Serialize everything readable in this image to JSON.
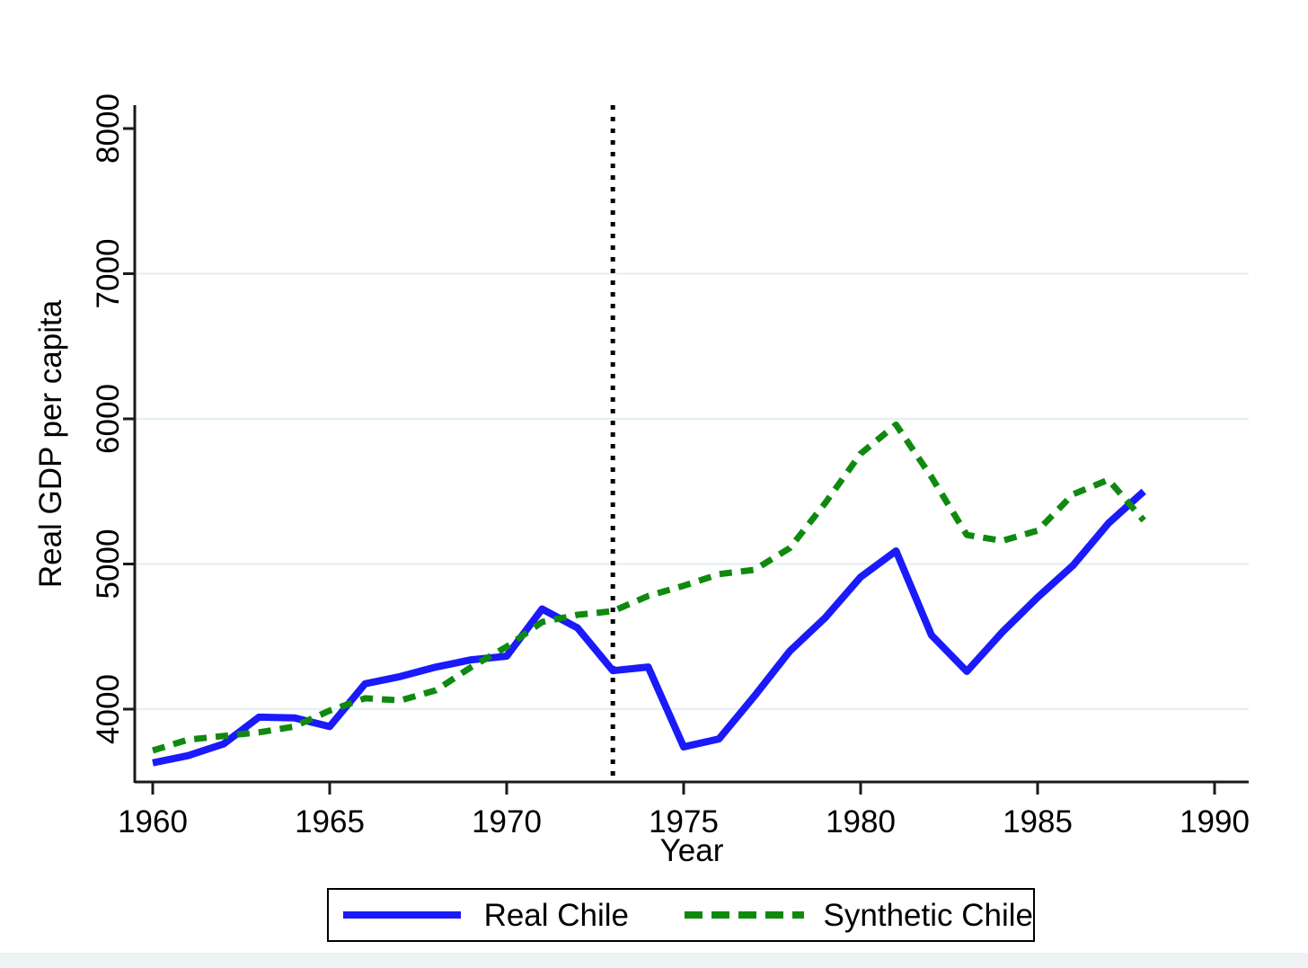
{
  "chart_data": {
    "type": "line",
    "x": [
      1960,
      1961,
      1962,
      1963,
      1964,
      1965,
      1966,
      1967,
      1968,
      1969,
      1970,
      1971,
      1972,
      1973,
      1974,
      1975,
      1976,
      1977,
      1978,
      1979,
      1980,
      1981,
      1982,
      1983,
      1984,
      1985,
      1986,
      1987,
      1988
    ],
    "series": [
      {
        "name": "Real Chile",
        "style": "solid",
        "color": "#1A1AFA",
        "values": [
          3630,
          3680,
          3760,
          3945,
          3940,
          3880,
          4175,
          4225,
          4290,
          4340,
          4365,
          4690,
          4560,
          4265,
          4290,
          3740,
          3795,
          4090,
          4400,
          4630,
          4910,
          5090,
          4510,
          4260,
          4530,
          4770,
          4990,
          5280,
          5500
        ]
      },
      {
        "name": "Synthetic Chile",
        "style": "dashed",
        "color": "#0F8A0F",
        "values": [
          3715,
          3790,
          3815,
          3840,
          3880,
          3990,
          4075,
          4060,
          4130,
          4290,
          4430,
          4600,
          4650,
          4675,
          4780,
          4850,
          4930,
          4960,
          5110,
          5420,
          5760,
          5960,
          5600,
          5200,
          5160,
          5230,
          5480,
          5580,
          5300
        ]
      }
    ],
    "xlabel": "Year",
    "ylabel": "Real GDP per capita",
    "xticks": [
      1960,
      1965,
      1970,
      1975,
      1980,
      1985,
      1990
    ],
    "yticks": [
      4000,
      5000,
      6000,
      7000,
      8000
    ],
    "xlim": [
      1959.5,
      1990.9
    ],
    "ylim": [
      3500,
      8160
    ],
    "treatment_line_x": 1973,
    "grid": "horizontal gridlines at 4000-7000 only",
    "legend_position": "bottom center, boxed",
    "y_tick_label_rotation": -90,
    "colors": {
      "grid": "#E4EFF1",
      "axis": "#1A1A1A",
      "treatment_line": "#000000",
      "background": "#FFFFFF",
      "bottom_strip": "#EFF2F4"
    }
  }
}
